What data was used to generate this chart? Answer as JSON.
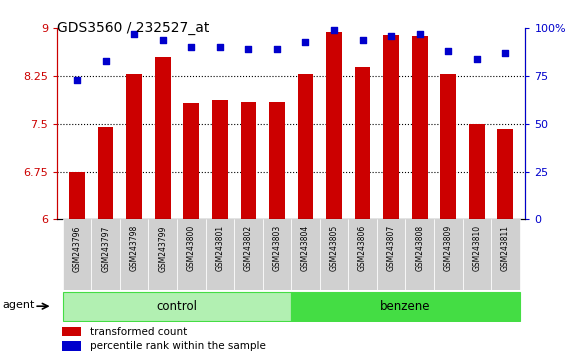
{
  "title": "GDS3560 / 232527_at",
  "samples": [
    "GSM243796",
    "GSM243797",
    "GSM243798",
    "GSM243799",
    "GSM243800",
    "GSM243801",
    "GSM243802",
    "GSM243803",
    "GSM243804",
    "GSM243805",
    "GSM243806",
    "GSM243807",
    "GSM243808",
    "GSM243809",
    "GSM243810",
    "GSM243811"
  ],
  "bar_values": [
    6.75,
    7.45,
    8.28,
    8.55,
    7.83,
    7.88,
    7.85,
    7.85,
    8.28,
    8.95,
    8.4,
    8.9,
    8.88,
    8.28,
    7.5,
    7.42
  ],
  "dot_values": [
    73,
    83,
    97,
    94,
    90,
    90,
    89,
    89,
    93,
    99,
    94,
    96,
    97,
    88,
    84,
    87
  ],
  "bar_color": "#cc0000",
  "dot_color": "#0000cc",
  "ylim_left": [
    6,
    9
  ],
  "ylim_right": [
    0,
    100
  ],
  "yticks_left": [
    6,
    6.75,
    7.5,
    8.25,
    9
  ],
  "yticks_right": [
    0,
    25,
    50,
    75,
    100
  ],
  "ytick_labels_left": [
    "6",
    "6.75",
    "7.5",
    "8.25",
    "9"
  ],
  "ytick_labels_right": [
    "0",
    "25",
    "50",
    "75",
    "100%"
  ],
  "grid_lines": [
    6.75,
    7.5,
    8.25
  ],
  "control_count": 8,
  "benzene_count": 8,
  "control_label": "control",
  "benzene_label": "benzene",
  "agent_label": "agent",
  "legend1": "transformed count",
  "legend2": "percentile rank within the sample",
  "control_color": "#b2f0b2",
  "benzene_color": "#44dd44",
  "bar_width": 0.55
}
